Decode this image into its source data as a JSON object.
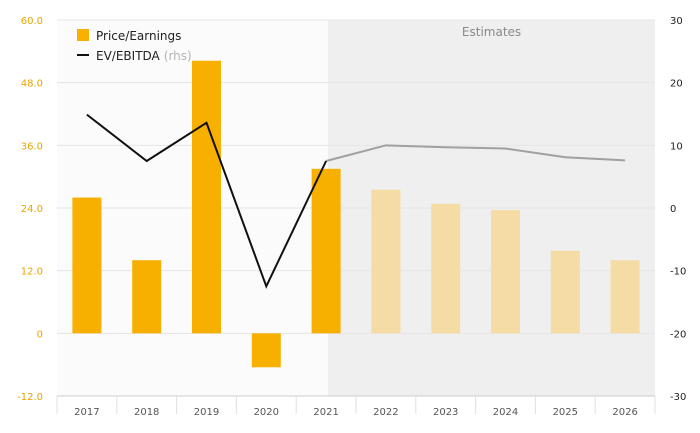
{
  "chart_data": {
    "type": "bar",
    "categories": [
      "2017",
      "2018",
      "2019",
      "2020",
      "2021",
      "2022",
      "2023",
      "2024",
      "2025",
      "2026"
    ],
    "series": [
      {
        "name": "Price/Earnings",
        "kind": "bar",
        "axis": "left",
        "color": "#f7b000",
        "estimate_color": "#f5dca4",
        "values": [
          26.0,
          14.0,
          52.2,
          -6.5,
          31.5,
          27.5,
          24.8,
          23.6,
          15.8,
          14.0
        ]
      },
      {
        "name": "EV/EBITDA",
        "name_suffix": "(rhs)",
        "kind": "line",
        "axis": "right",
        "color": "#111111",
        "estimate_color": "#a0a0a0",
        "values": [
          14.9,
          7.5,
          13.6,
          -12.5,
          7.5,
          10.0,
          9.7,
          9.5,
          8.1,
          7.6
        ]
      }
    ],
    "estimates_label": "Estimates",
    "estimates_start_index": 5,
    "y_left": {
      "ticks": [
        "60.0",
        "48.0",
        "36.0",
        "24.0",
        "12.0",
        "0",
        "-12.0"
      ],
      "range": [
        -12,
        60
      ],
      "color": "#e8a400"
    },
    "y_right": {
      "ticks": [
        "30",
        "20",
        "10",
        "0",
        "-10",
        "-20",
        "-30"
      ],
      "range": [
        -30,
        30
      ],
      "color": "#222222"
    },
    "grid": true,
    "legend_position": "top-left",
    "shading_color": "#efefef"
  }
}
